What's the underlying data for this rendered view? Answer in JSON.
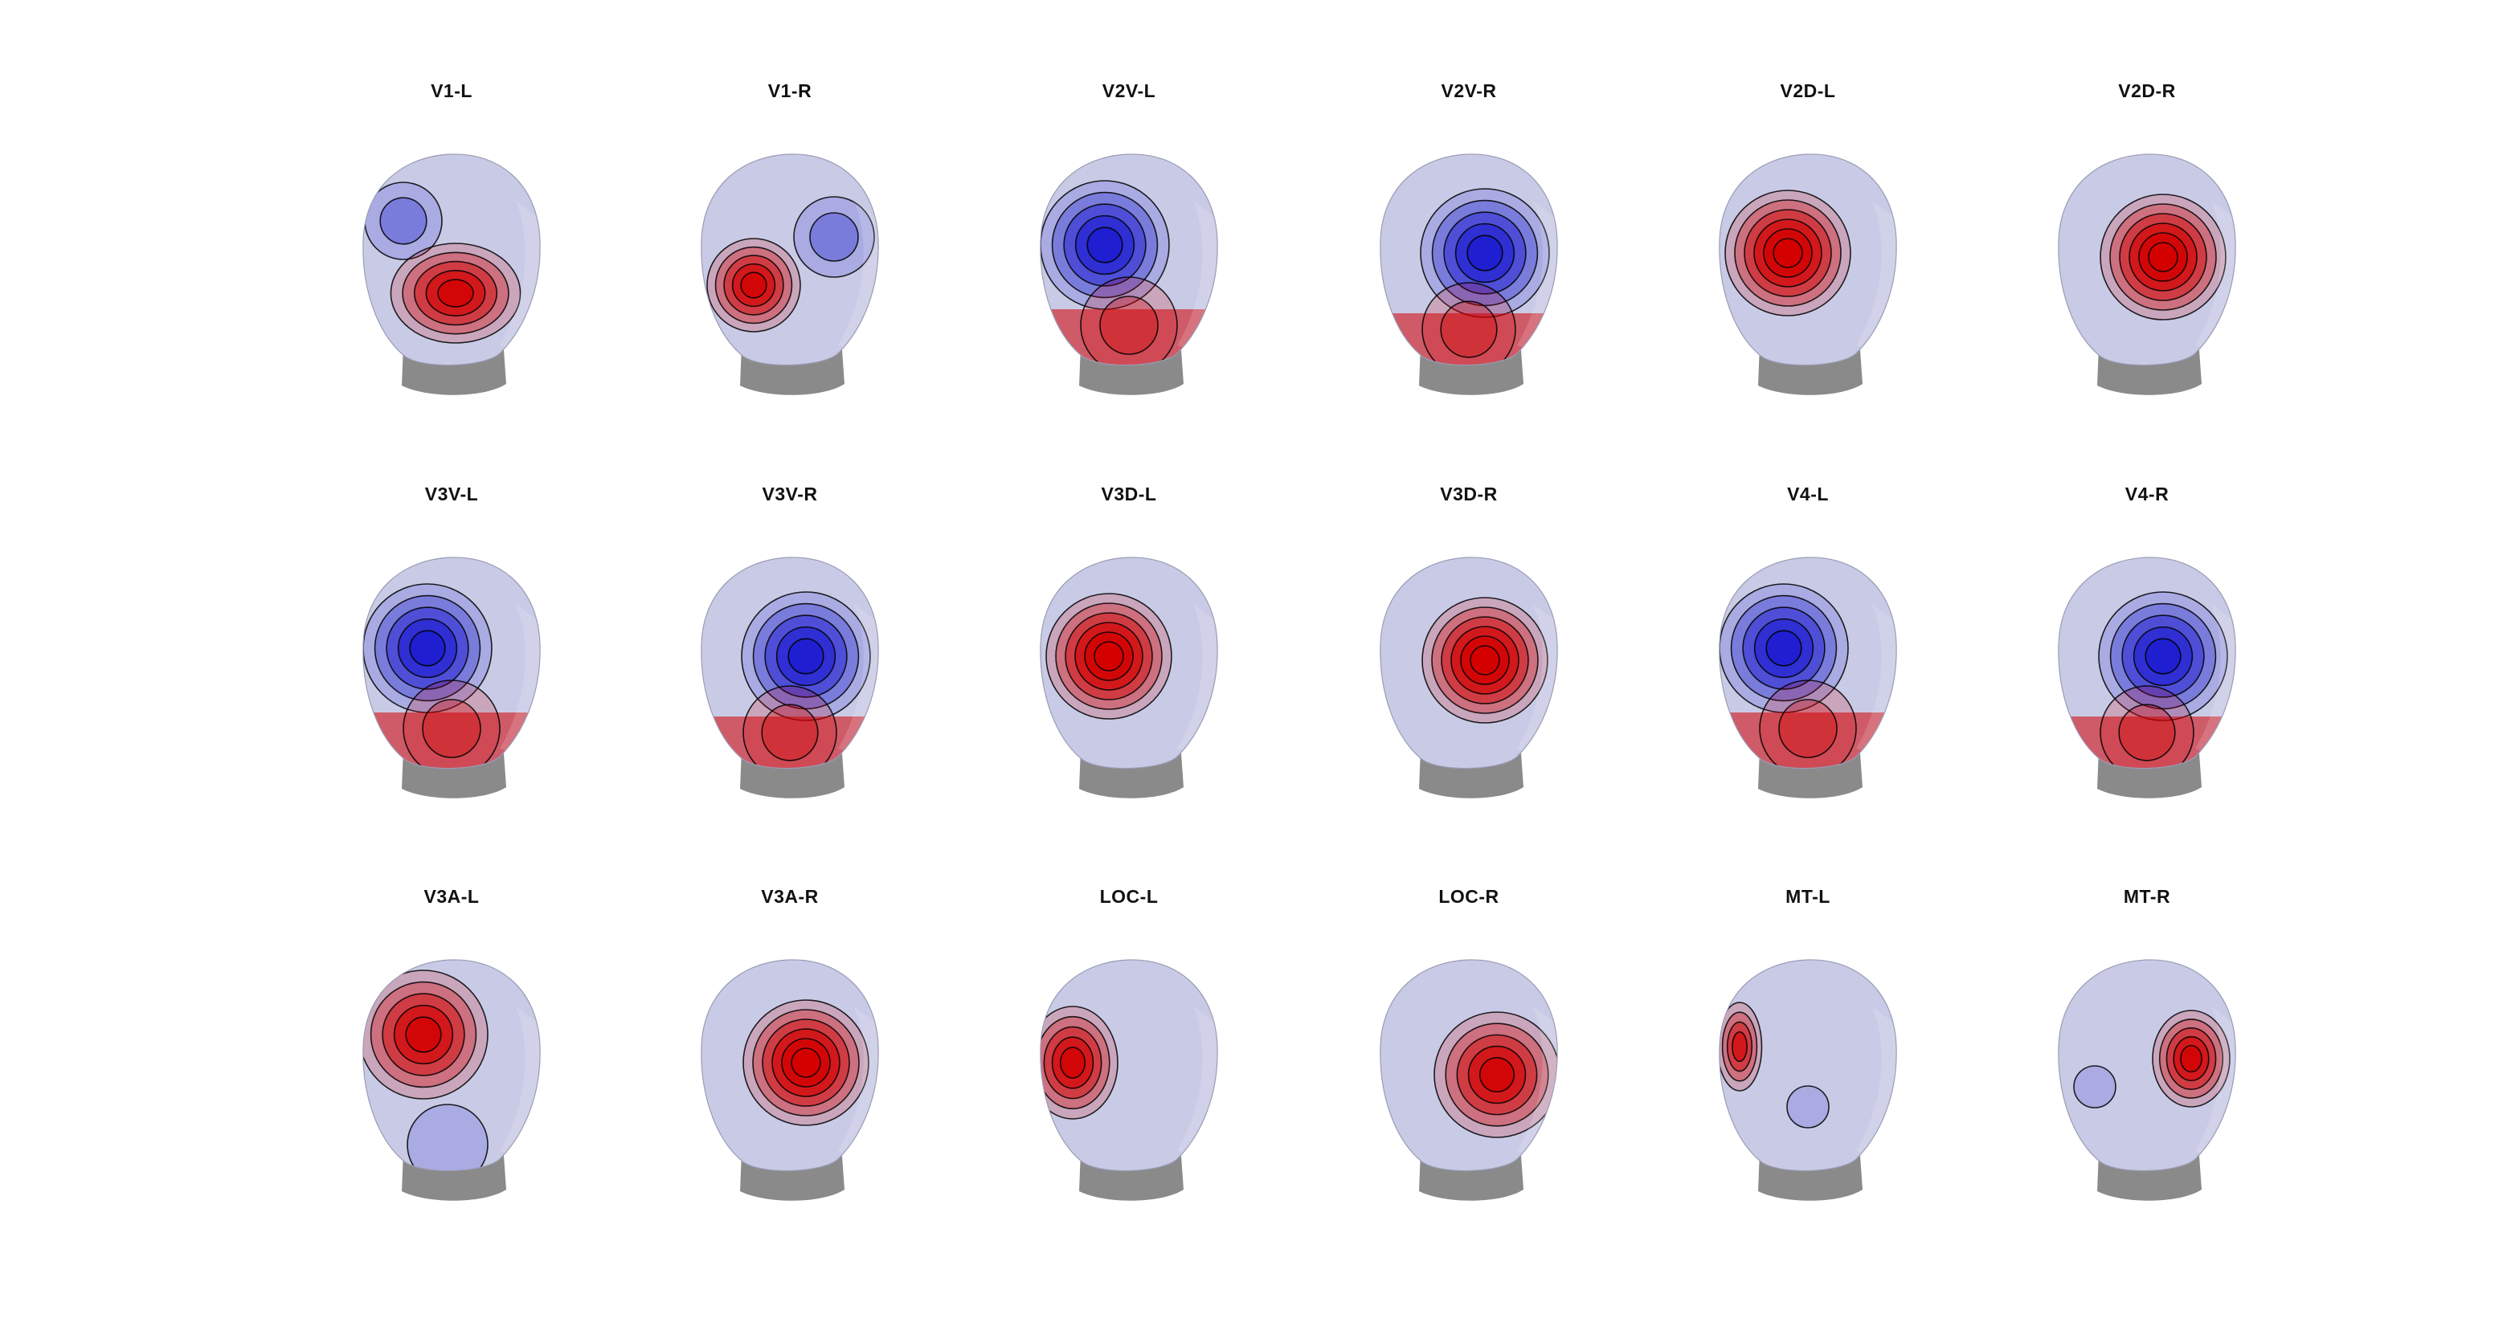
{
  "figure": {
    "panels": [
      {
        "title": "V1-L",
        "pattern": "split-left"
      },
      {
        "title": "V1-R",
        "pattern": "split-right"
      },
      {
        "title": "V2V-L",
        "pattern": "blue-left"
      },
      {
        "title": "V2V-R",
        "pattern": "blue-center"
      },
      {
        "title": "V2D-L",
        "pattern": "red-left"
      },
      {
        "title": "V2D-R",
        "pattern": "red-center"
      },
      {
        "title": "V3V-L",
        "pattern": "blue-left"
      },
      {
        "title": "V3V-R",
        "pattern": "blue-center"
      },
      {
        "title": "V3D-L",
        "pattern": "red-left"
      },
      {
        "title": "V3D-R",
        "pattern": "red-center"
      },
      {
        "title": "V4-L",
        "pattern": "blue-left"
      },
      {
        "title": "V4-R",
        "pattern": "blue-center"
      },
      {
        "title": "V3A-L",
        "pattern": "red-left-upper"
      },
      {
        "title": "V3A-R",
        "pattern": "red-center"
      },
      {
        "title": "LOC-L",
        "pattern": "red-edge-left"
      },
      {
        "title": "LOC-R",
        "pattern": "red-right"
      },
      {
        "title": "MT-L",
        "pattern": "mt-left"
      },
      {
        "title": "MT-R",
        "pattern": "mt-right"
      }
    ],
    "colors": {
      "positive": "#d40000",
      "negative": "#1a1ad0",
      "neutral": "#c9cbe6",
      "neck": "#8a8a8a",
      "contour": "#000000"
    }
  }
}
